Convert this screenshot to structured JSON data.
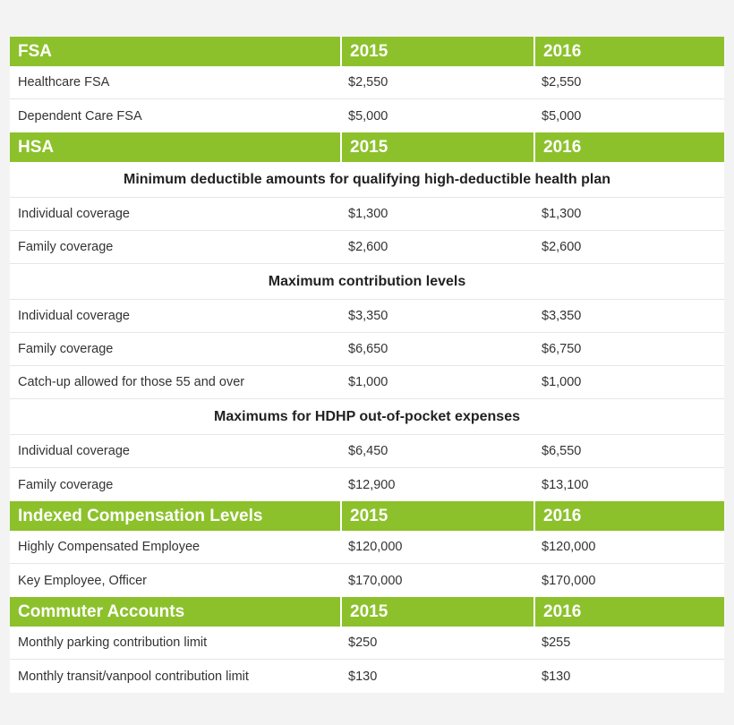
{
  "colors": {
    "header_bg": "#8cc12b",
    "header_text": "#ffffff",
    "page_bg": "#f3f3f3"
  },
  "sections": [
    {
      "header": {
        "title": "FSA",
        "col1": "2015",
        "col2": "2016"
      },
      "rows": [
        {
          "label": "Healthcare FSA",
          "v2015": "$2,550",
          "v2016": "$2,550"
        },
        {
          "label": "Dependent Care FSA",
          "v2015": "$5,000",
          "v2016": "$5,000"
        }
      ]
    },
    {
      "header": {
        "title": "HSA",
        "col1": "2015",
        "col2": "2016"
      },
      "subtitle1": "Minimum deductible amounts for qualifying high-deductible health plan",
      "rows1": [
        {
          "label": "Individual coverage",
          "v2015": "$1,300",
          "v2016": "$1,300"
        },
        {
          "label": "Family coverage",
          "v2015": "$2,600",
          "v2016": "$2,600"
        }
      ],
      "subtitle2": "Maximum contribution levels",
      "rows2": [
        {
          "label": "Individual coverage",
          "v2015": "$3,350",
          "v2016": "$3,350"
        },
        {
          "label": "Family coverage",
          "v2015": "$6,650",
          "v2016": "$6,750"
        },
        {
          "label": "Catch-up allowed for those 55 and over",
          "v2015": "$1,000",
          "v2016": "$1,000"
        }
      ],
      "subtitle3": "Maximums for HDHP out-of-pocket expenses",
      "rows3": [
        {
          "label": "Individual coverage",
          "v2015": "$6,450",
          "v2016": "$6,550"
        },
        {
          "label": "Family coverage",
          "v2015": "$12,900",
          "v2016": "$13,100"
        }
      ]
    },
    {
      "header": {
        "title": "Indexed Compensation Levels",
        "col1": "2015",
        "col2": "2016"
      },
      "rows": [
        {
          "label": "Highly Compensated Employee",
          "v2015": "$120,000",
          "v2016": "$120,000"
        },
        {
          "label": "Key Employee, Officer",
          "v2015": "$170,000",
          "v2016": "$170,000"
        }
      ]
    },
    {
      "header": {
        "title": "Commuter Accounts",
        "col1": "2015",
        "col2": "2016"
      },
      "rows": [
        {
          "label": "Monthly parking contribution limit",
          "v2015": "$250",
          "v2016": "$255"
        },
        {
          "label": "Monthly transit/vanpool contribution limit",
          "v2015": "$130",
          "v2016": "$130"
        }
      ]
    }
  ]
}
